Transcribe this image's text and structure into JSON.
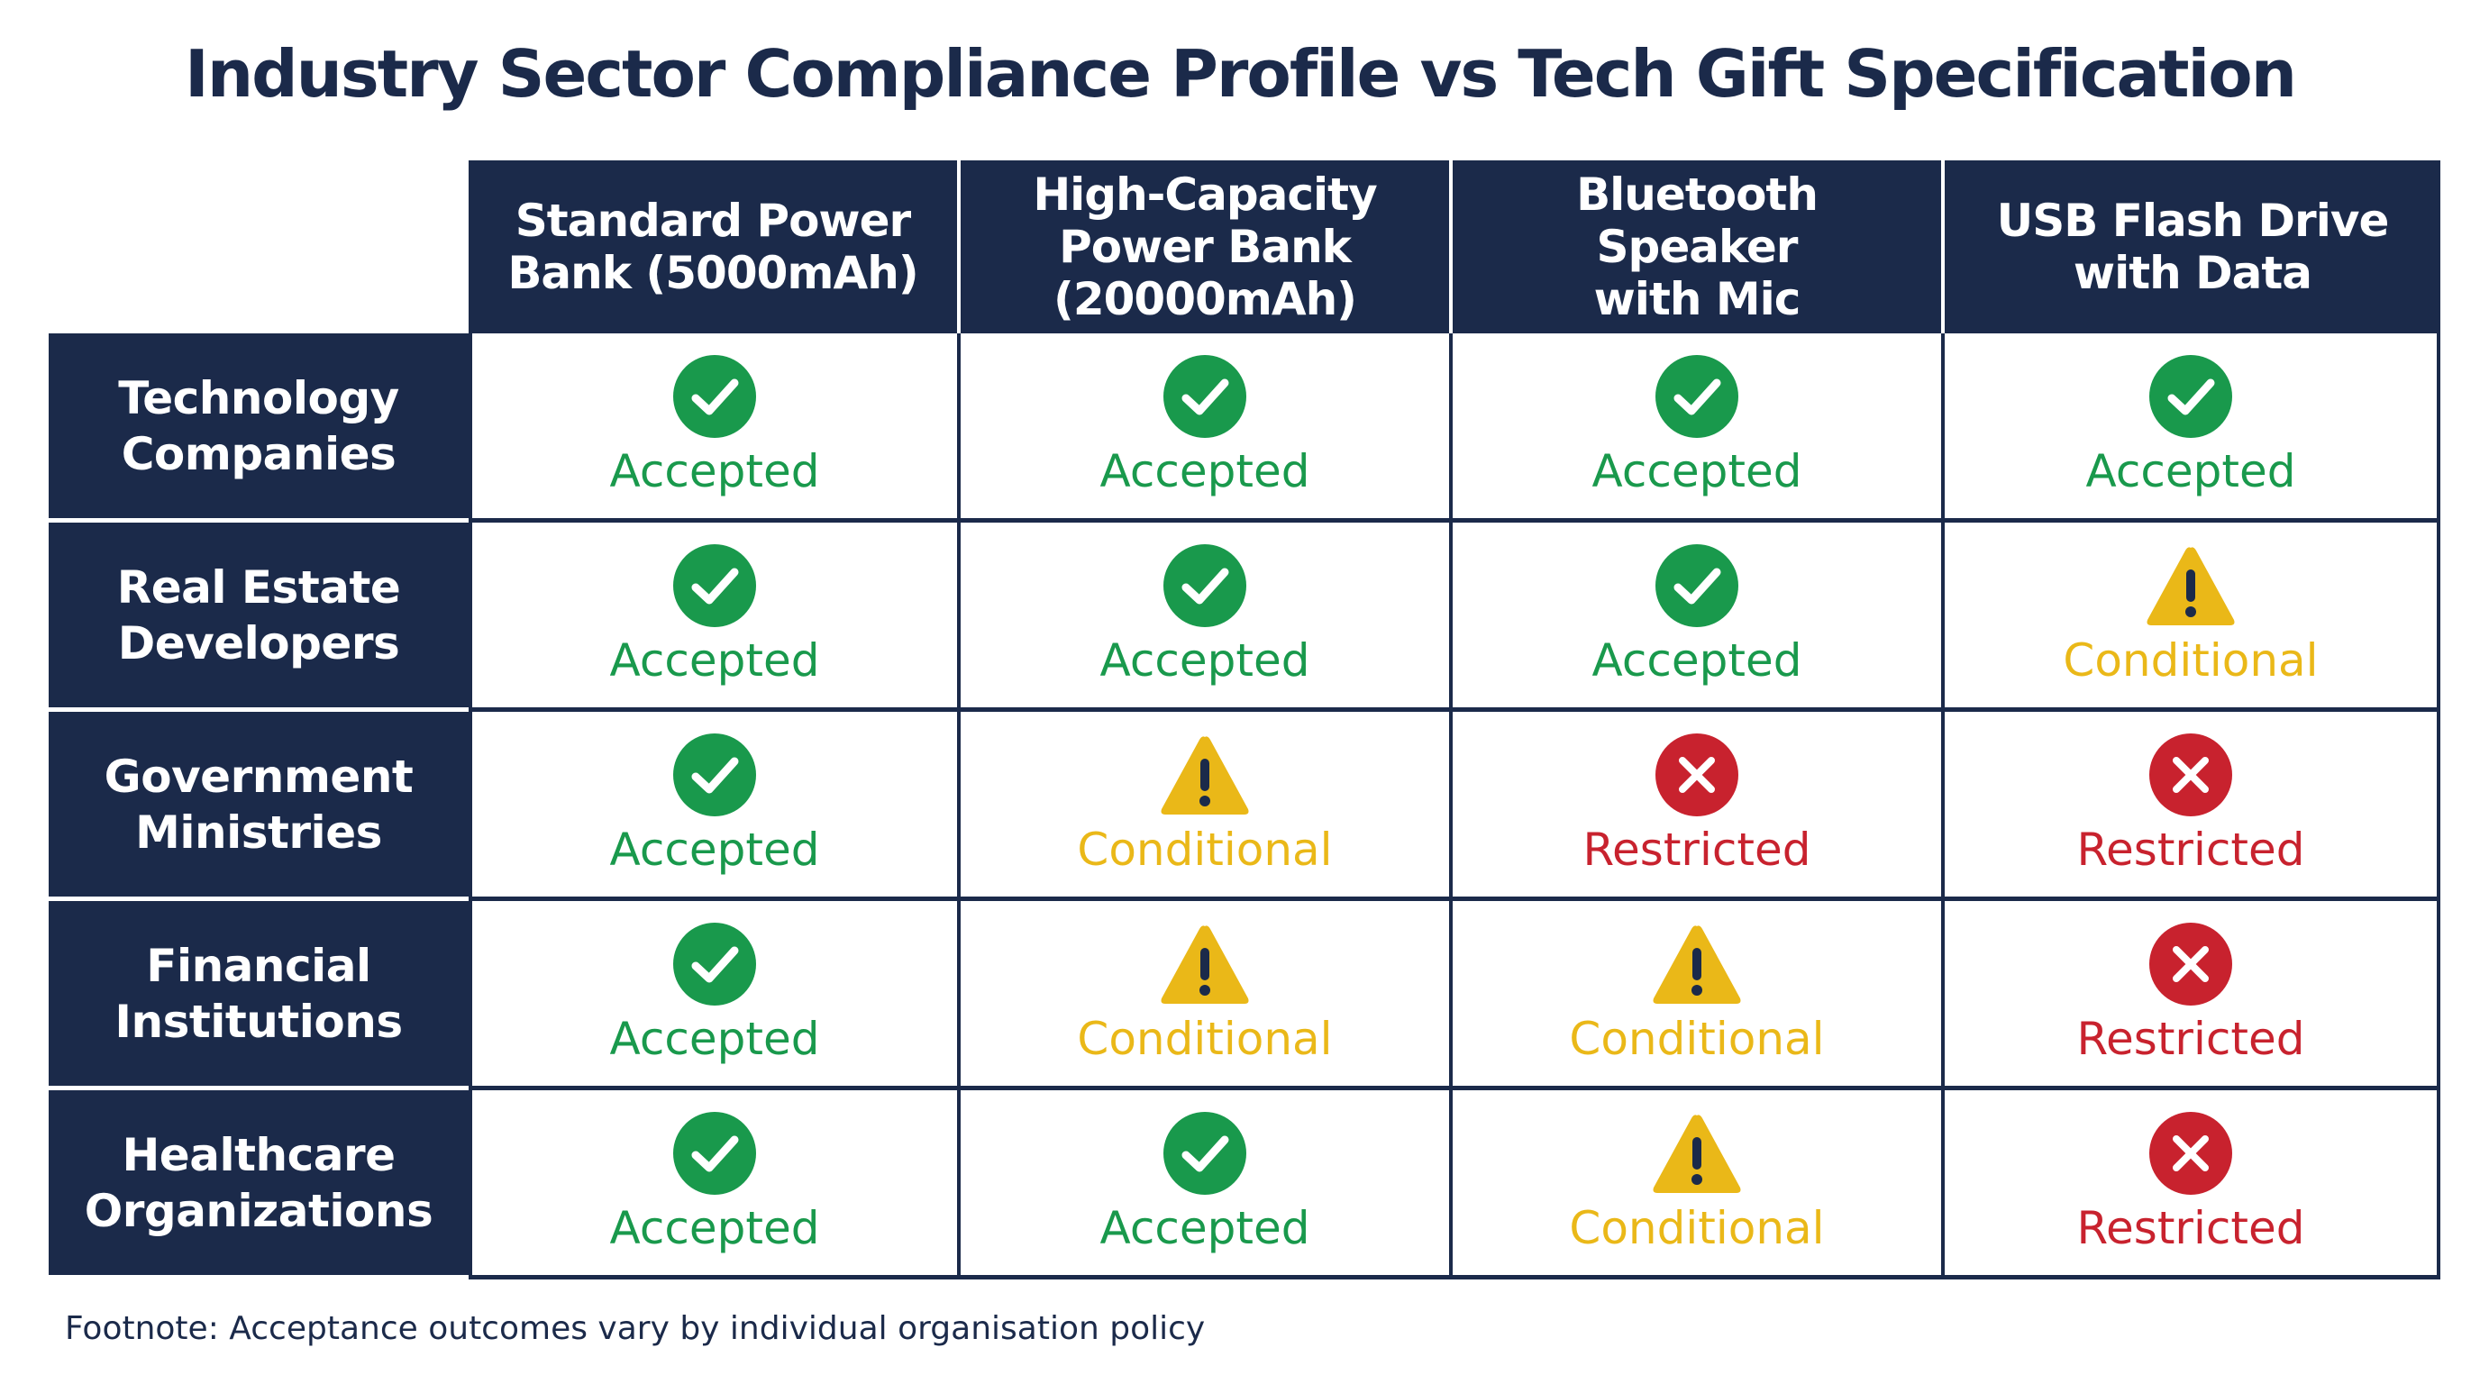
{
  "title": "Industry Sector Compliance Profile vs Tech Gift Specification",
  "columns": [
    {
      "label": "Standard Power\nBank (5000mAh)"
    },
    {
      "label": "High-Capacity\nPower Bank\n(20000mAh)"
    },
    {
      "label": "Bluetooth Speaker\nwith Mic"
    },
    {
      "label": "USB Flash Drive\nwith Data"
    }
  ],
  "rows": [
    {
      "label": "Technology\nCompanies",
      "cells": [
        "Accepted",
        "Accepted",
        "Accepted",
        "Accepted"
      ]
    },
    {
      "label": "Real Estate\nDevelopers",
      "cells": [
        "Accepted",
        "Accepted",
        "Accepted",
        "Conditional"
      ]
    },
    {
      "label": "Government\nMinistries",
      "cells": [
        "Accepted",
        "Conditional",
        "Restricted",
        "Restricted"
      ]
    },
    {
      "label": "Financial\nInstitutions",
      "cells": [
        "Accepted",
        "Conditional",
        "Conditional",
        "Restricted"
      ]
    },
    {
      "label": "Healthcare\nOrganizations",
      "cells": [
        "Accepted",
        "Accepted",
        "Conditional",
        "Restricted"
      ]
    }
  ],
  "status_styles": {
    "Accepted": {
      "icon": "check-circle-icon",
      "color": "#19994c"
    },
    "Conditional": {
      "icon": "warning-triangle-icon",
      "color": "#eab818"
    },
    "Restricted": {
      "icon": "x-circle-icon",
      "color": "#c8222e"
    }
  },
  "colors": {
    "navy": "#1b2a4a",
    "background": "#ffffff"
  },
  "footnote": "Footnote: Acceptance outcomes vary by individual organisation policy"
}
